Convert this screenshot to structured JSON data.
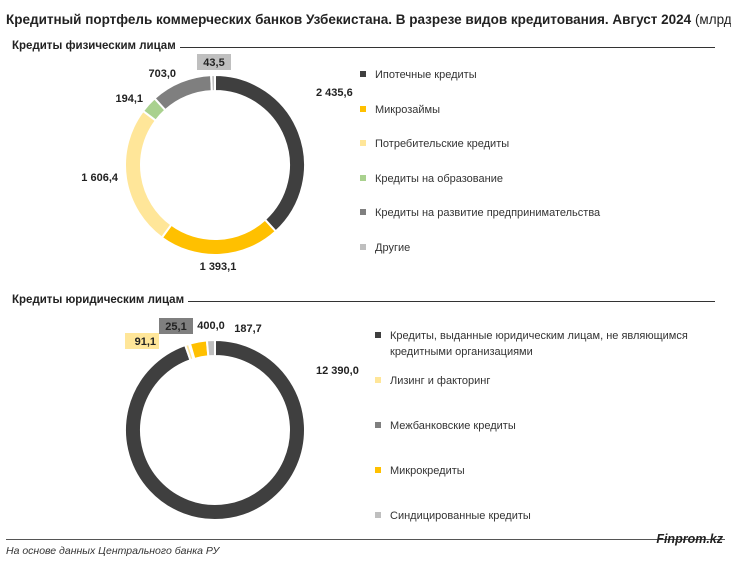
{
  "header": {
    "title_bold": "Кредитный портфель коммерческих банков Узбекистана. В разрезе видов кредитования. Август 2024",
    "title_unit": "(млрд тг)"
  },
  "chart_data": [
    {
      "type": "pie",
      "variant": "donut",
      "title": "Кредиты физическим лицам",
      "categories": [
        "Ипотечные кредиты",
        "Микрозаймы",
        "Потребительские кредиты",
        "Кредиты на образование",
        "Кредиты на развитие предпринимательства",
        "Другие"
      ],
      "values": [
        2435.6,
        1393.1,
        1606.4,
        194.1,
        703.0,
        43.5
      ],
      "labels": [
        "2 435,6",
        "1 393,1",
        "1 606,4",
        "194,1",
        "703,0",
        "43,5"
      ],
      "colors": [
        "#3f3f3f",
        "#ffc000",
        "#ffe699",
        "#a9d18e",
        "#7f7f7f",
        "#bfbfbf"
      ],
      "legend": "right"
    },
    {
      "type": "pie",
      "variant": "donut",
      "title": "Кредиты юридическим лицам",
      "categories": [
        "Кредиты, выданные юридическим лицам, не являющимся кредитными организациями",
        "Лизинг и факторинг",
        "Межбанковские кредиты",
        "Микрокредиты",
        "Синдицированные кредиты"
      ],
      "values": [
        12390.0,
        91.1,
        25.1,
        400.0,
        187.7
      ],
      "labels": [
        "12 390,0",
        "91,1",
        "25,1",
        "400,0",
        "187,7"
      ],
      "colors": [
        "#3f3f3f",
        "#ffe699",
        "#7f7f7f",
        "#ffc000",
        "#bfbfbf"
      ],
      "legend": "right"
    }
  ],
  "footer": {
    "source": "На основе данных Центрального банка РУ",
    "brand": "Finprom.kz"
  }
}
